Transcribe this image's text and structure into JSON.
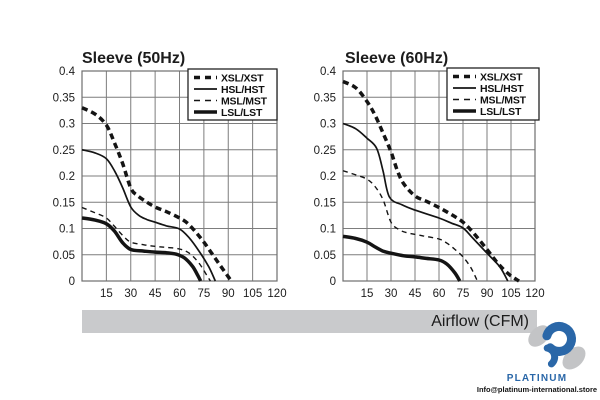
{
  "chart_data": [
    {
      "type": "line",
      "title": "Sleeve (50Hz)",
      "xlabel": "Airflow (CFM)",
      "ylabel": "",
      "xlim": [
        0,
        120
      ],
      "ylim": [
        0,
        0.4
      ],
      "x_ticks": [
        "15",
        "30",
        "45",
        "60",
        "75",
        "90",
        "105",
        "120"
      ],
      "y_ticks": [
        "0.4",
        "0.35",
        "0.3",
        "0.25",
        "0.2",
        "0.15",
        "0.1",
        "0.05",
        "0"
      ],
      "grid": true,
      "legend_position": "top-right",
      "series": [
        {
          "name": "XSL/XST",
          "style": "dashed-thick",
          "points": [
            [
              0,
              0.33
            ],
            [
              8,
              0.318
            ],
            [
              15,
              0.297
            ],
            [
              20,
              0.263
            ],
            [
              25,
              0.224
            ],
            [
              30,
              0.177
            ],
            [
              34,
              0.163
            ],
            [
              40,
              0.15
            ],
            [
              45,
              0.141
            ],
            [
              52,
              0.132
            ],
            [
              60,
              0.12
            ],
            [
              65,
              0.11
            ],
            [
              70,
              0.093
            ],
            [
              75,
              0.074
            ],
            [
              80,
              0.052
            ],
            [
              85,
              0.03
            ],
            [
              90,
              0.008
            ],
            [
              92,
              0
            ]
          ]
        },
        {
          "name": "HSL/HST",
          "style": "solid-thin",
          "points": [
            [
              0,
              0.25
            ],
            [
              8,
              0.244
            ],
            [
              15,
              0.233
            ],
            [
              20,
              0.21
            ],
            [
              25,
              0.178
            ],
            [
              30,
              0.141
            ],
            [
              35,
              0.125
            ],
            [
              40,
              0.117
            ],
            [
              45,
              0.112
            ],
            [
              52,
              0.105
            ],
            [
              60,
              0.099
            ],
            [
              66,
              0.082
            ],
            [
              72,
              0.057
            ],
            [
              78,
              0.027
            ],
            [
              82,
              0
            ]
          ]
        },
        {
          "name": "MSL/MST",
          "style": "dashed-thin",
          "points": [
            [
              0,
              0.14
            ],
            [
              8,
              0.13
            ],
            [
              15,
              0.12
            ],
            [
              20,
              0.104
            ],
            [
              25,
              0.087
            ],
            [
              30,
              0.074
            ],
            [
              38,
              0.069
            ],
            [
              45,
              0.066
            ],
            [
              52,
              0.064
            ],
            [
              60,
              0.061
            ],
            [
              66,
              0.053
            ],
            [
              72,
              0.034
            ],
            [
              77,
              0.01
            ],
            [
              79,
              0
            ]
          ]
        },
        {
          "name": "LSL/LST",
          "style": "solid-thick",
          "points": [
            [
              0,
              0.12
            ],
            [
              8,
              0.116
            ],
            [
              15,
              0.109
            ],
            [
              20,
              0.095
            ],
            [
              25,
              0.073
            ],
            [
              30,
              0.06
            ],
            [
              38,
              0.057
            ],
            [
              45,
              0.055
            ],
            [
              52,
              0.054
            ],
            [
              58,
              0.051
            ],
            [
              63,
              0.044
            ],
            [
              68,
              0.028
            ],
            [
              71,
              0.012
            ],
            [
              73,
              0
            ]
          ]
        }
      ]
    },
    {
      "type": "line",
      "title": "Sleeve (60Hz)",
      "xlabel": "Airflow (CFM)",
      "ylabel": "",
      "xlim": [
        0,
        120
      ],
      "ylim": [
        0,
        0.4
      ],
      "x_ticks": [
        "15",
        "30",
        "45",
        "60",
        "75",
        "90",
        "105",
        "120"
      ],
      "y_ticks": [
        "0.4",
        "0.35",
        "0.3",
        "0.25",
        "0.2",
        "0.15",
        "0.1",
        "0.05",
        "0"
      ],
      "grid": true,
      "legend_position": "top-right",
      "series": [
        {
          "name": "XSL/XST",
          "style": "dashed-thick",
          "points": [
            [
              0,
              0.38
            ],
            [
              8,
              0.368
            ],
            [
              15,
              0.342
            ],
            [
              20,
              0.316
            ],
            [
              25,
              0.282
            ],
            [
              30,
              0.246
            ],
            [
              34,
              0.21
            ],
            [
              38,
              0.185
            ],
            [
              45,
              0.162
            ],
            [
              52,
              0.152
            ],
            [
              60,
              0.14
            ],
            [
              68,
              0.126
            ],
            [
              75,
              0.112
            ],
            [
              82,
              0.09
            ],
            [
              90,
              0.06
            ],
            [
              97,
              0.033
            ],
            [
              104,
              0.012
            ],
            [
              110,
              0
            ]
          ]
        },
        {
          "name": "HSL/HST",
          "style": "solid-thin",
          "points": [
            [
              0,
              0.3
            ],
            [
              8,
              0.29
            ],
            [
              15,
              0.272
            ],
            [
              21,
              0.253
            ],
            [
              25,
              0.21
            ],
            [
              29,
              0.16
            ],
            [
              37,
              0.145
            ],
            [
              45,
              0.135
            ],
            [
              60,
              0.12
            ],
            [
              68,
              0.11
            ],
            [
              75,
              0.101
            ],
            [
              81,
              0.082
            ],
            [
              90,
              0.053
            ],
            [
              98,
              0.027
            ],
            [
              103,
              0
            ]
          ]
        },
        {
          "name": "MSL/MST",
          "style": "dashed-thin",
          "points": [
            [
              0,
              0.21
            ],
            [
              8,
              0.202
            ],
            [
              15,
              0.194
            ],
            [
              20,
              0.18
            ],
            [
              25,
              0.155
            ],
            [
              30,
              0.112
            ],
            [
              35,
              0.098
            ],
            [
              40,
              0.092
            ],
            [
              50,
              0.086
            ],
            [
              60,
              0.08
            ],
            [
              65,
              0.072
            ],
            [
              70,
              0.06
            ],
            [
              75,
              0.046
            ],
            [
              80,
              0.025
            ],
            [
              84,
              0
            ]
          ]
        },
        {
          "name": "LSL/LST",
          "style": "solid-thick",
          "points": [
            [
              0,
              0.085
            ],
            [
              8,
              0.081
            ],
            [
              15,
              0.074
            ],
            [
              20,
              0.065
            ],
            [
              25,
              0.057
            ],
            [
              30,
              0.053
            ],
            [
              38,
              0.048
            ],
            [
              45,
              0.046
            ],
            [
              52,
              0.043
            ],
            [
              60,
              0.04
            ],
            [
              65,
              0.032
            ],
            [
              70,
              0.015
            ],
            [
              73,
              0
            ]
          ]
        }
      ]
    }
  ],
  "axis_bar": {
    "label": "Airflow (CFM)",
    "bg": "#c9cacc"
  },
  "watermark": {
    "brand": "PLATINUM",
    "email": "Info@platinum-international.store",
    "blue": "#2a67a8",
    "gray": "#c3c4c6"
  },
  "colors": {
    "curve": "#141414",
    "grid": "#7d7d7d",
    "border": "#6e6e6e",
    "text": "#1c1c1c"
  }
}
